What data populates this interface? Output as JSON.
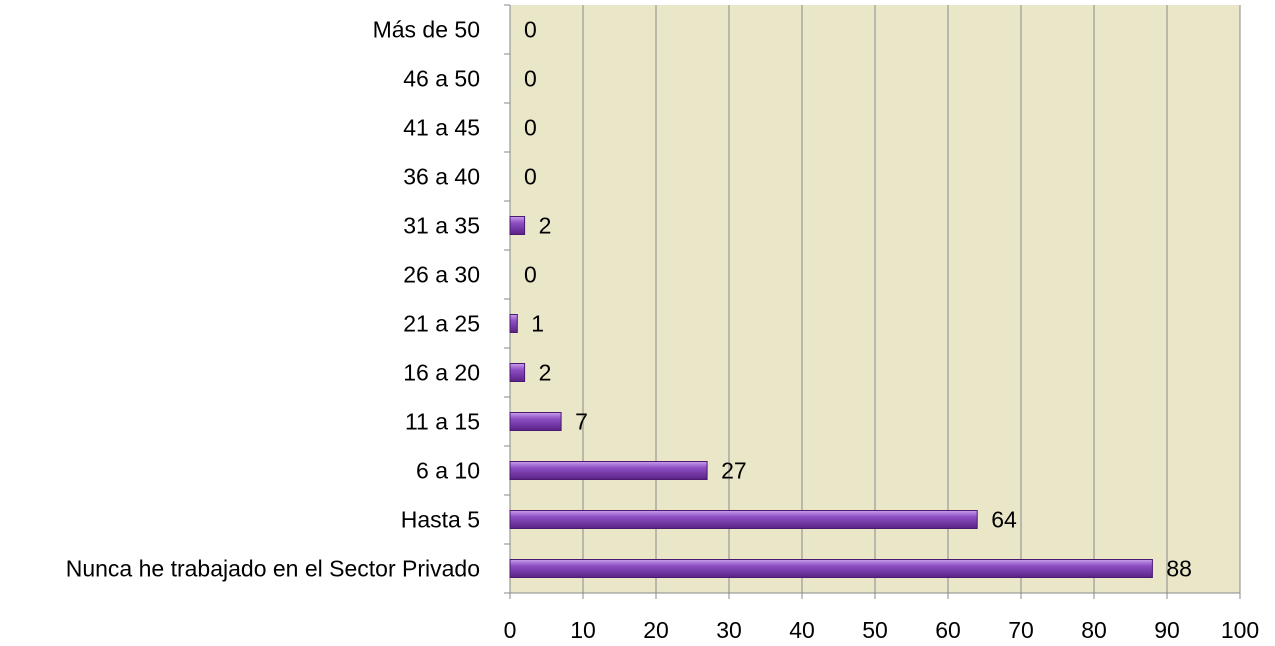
{
  "chart_data": {
    "type": "hbar",
    "categories": [
      "Nunca he trabajado en el Sector Privado",
      "Hasta 5",
      "6 a 10",
      "11 a 15",
      "16 a 20",
      "21 a 25",
      "26 a 30",
      "31 a 35",
      "36 a 40",
      "41 a 45",
      "46 a 50",
      "Más de 50"
    ],
    "values": [
      88,
      64,
      27,
      7,
      2,
      1,
      0,
      2,
      0,
      0,
      0,
      0
    ],
    "color": "#7b3fae",
    "xlim": [
      0,
      100
    ],
    "xticks": [
      0,
      10,
      20,
      30,
      40,
      50,
      60,
      70,
      80,
      90,
      100
    ],
    "grid": true
  }
}
